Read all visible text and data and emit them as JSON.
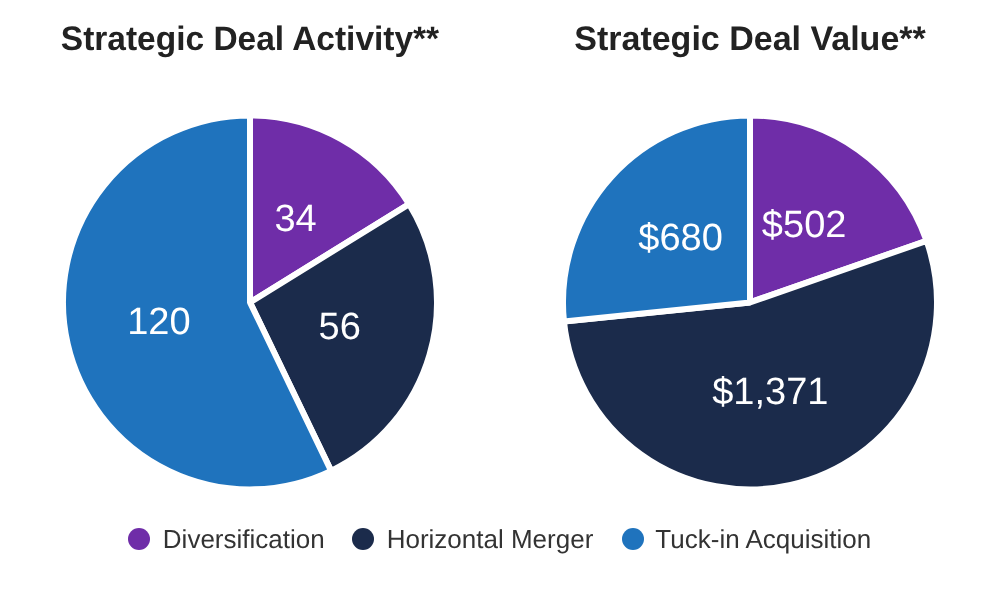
{
  "chart_data": [
    {
      "type": "pie",
      "title": "Strategic Deal Activity**",
      "categories": [
        "Diversification",
        "Horizontal Merger",
        "Tuck-in Acquisition"
      ],
      "values": [
        34,
        56,
        120
      ],
      "colors": [
        "#6f2da8",
        "#1b2b4b",
        "#1f73bd"
      ],
      "data_labels": true,
      "legend": "bottom"
    },
    {
      "type": "pie",
      "title": "Strategic Deal Value**",
      "categories": [
        null,
        null,
        null
      ],
      "values": [
        502,
        1371,
        680
      ],
      "colors": [
        "#6f2da8",
        "#1b2b4b",
        "#1f73bd"
      ],
      "value_labels": [
        "$502",
        "$1,371",
        "$680"
      ]
    }
  ]
}
